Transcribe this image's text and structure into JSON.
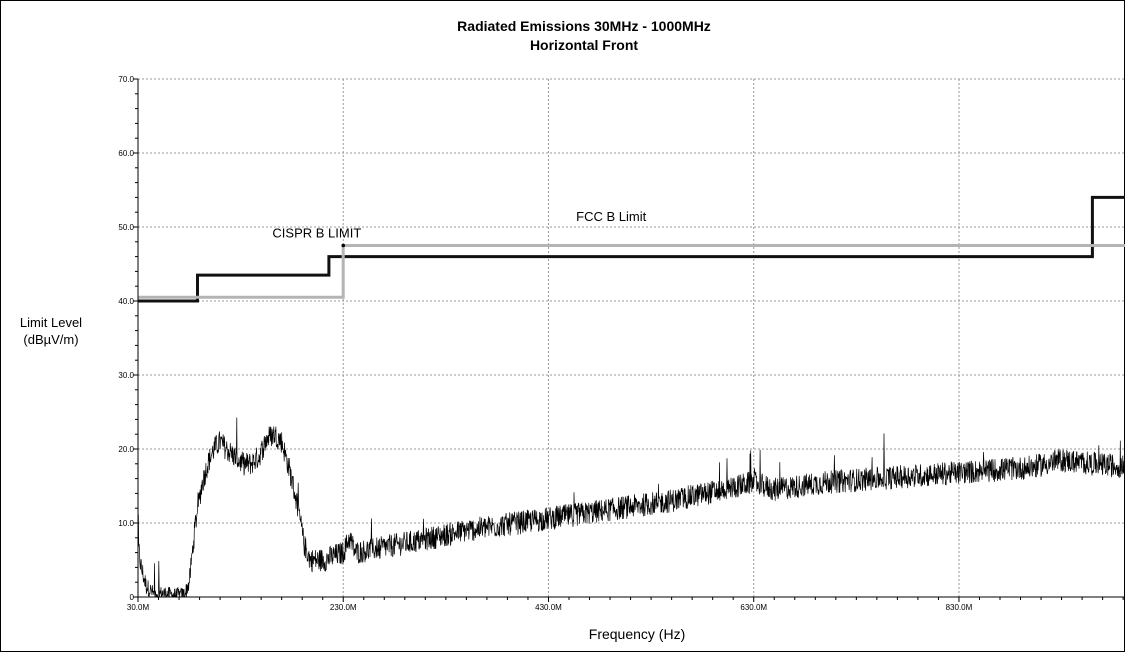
{
  "chart_data": {
    "type": "line",
    "title": "Radiated Emissions 30MHz - 1000MHz",
    "subtitle": "Horizontal Front",
    "xlabel": "Frequency (Hz)",
    "ylabel": [
      "Limit Level",
      "(dBµV/m)"
    ],
    "xlim": [
      30,
      1000
    ],
    "ylim": [
      0,
      70
    ],
    "grid": true,
    "x_ticks": [
      {
        "value": 30,
        "label": "30.0M"
      },
      {
        "value": 230,
        "label": "230.0M"
      },
      {
        "value": 430,
        "label": "430.0M"
      },
      {
        "value": 630,
        "label": "630.0M"
      },
      {
        "value": 830,
        "label": "830.0M"
      }
    ],
    "y_ticks": [
      {
        "value": 0,
        "label": "0"
      },
      {
        "value": 10,
        "label": "10.0"
      },
      {
        "value": 20,
        "label": "20.0"
      },
      {
        "value": 30,
        "label": "30.0"
      },
      {
        "value": 40,
        "label": "40.0"
      },
      {
        "value": 50,
        "label": "50.0"
      },
      {
        "value": 60,
        "label": "60.0"
      },
      {
        "value": 70,
        "label": "70.0"
      }
    ],
    "series": [
      {
        "name": "CISPR B LIMIT",
        "color": "#111111",
        "step": true,
        "x": [
          30,
          88,
          88,
          216,
          216,
          960,
          960,
          1000
        ],
        "y": [
          40,
          40,
          43.5,
          43.5,
          46,
          46,
          54,
          54
        ]
      },
      {
        "name": "FCC B Limit",
        "color": "#b4b4b4",
        "step": true,
        "x": [
          30,
          230,
          230,
          1000
        ],
        "y": [
          40.5,
          40.5,
          47.5,
          47.5
        ]
      },
      {
        "color": "#000000",
        "noise": true,
        "x": [
          30,
          33,
          38,
          45,
          55,
          65,
          72,
          76,
          80,
          86,
          92,
          98,
          104,
          110,
          116,
          124,
          132,
          140,
          148,
          156,
          163,
          170,
          178,
          186,
          192,
          198,
          204,
          212,
          220,
          230,
          236,
          242,
          260,
          300,
          350,
          400,
          450,
          500,
          550,
          600,
          630,
          650,
          700,
          750,
          800,
          850,
          900,
          930,
          960,
          1000
        ],
        "y": [
          7,
          4,
          1.5,
          0.5,
          0.5,
          0.3,
          0.3,
          0.5,
          2,
          10,
          15,
          18,
          20,
          21,
          20,
          19,
          18,
          18,
          19,
          21.5,
          22,
          21,
          17,
          12,
          7,
          5,
          5,
          5,
          5.5,
          6,
          8,
          6,
          6.5,
          7.5,
          9,
          10,
          11,
          12,
          13,
          14.5,
          15.5,
          14.5,
          15.5,
          16,
          16.5,
          17,
          17.5,
          18.5,
          18,
          17.5
        ],
        "spread": 1.6
      }
    ],
    "annotations": [
      {
        "text": "CISPR B LIMIT",
        "x": 161,
        "y": 48.6
      },
      {
        "text": "FCC B Limit",
        "x": 457,
        "y": 50.8
      }
    ],
    "markers": [
      {
        "x": 230,
        "y": 47.5
      }
    ]
  }
}
